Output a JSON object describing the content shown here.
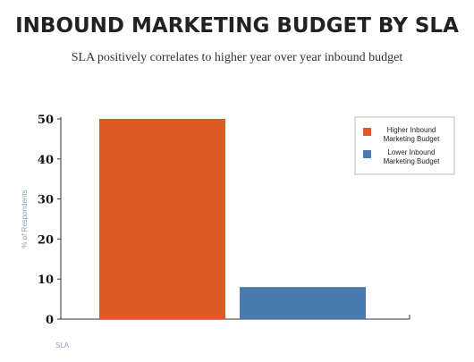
{
  "title": "INBOUND MARKETING BUDGET BY SLA",
  "subtitle": "SLA positively correlates to higher year over year inbound budget",
  "chart_data": {
    "type": "bar",
    "title": "INBOUND MARKETING BUDGET BY SLA",
    "subtitle": "SLA positively correlates to higher year over year inbound budget",
    "xlabel": "SLA",
    "ylabel": "% of Respondents",
    "ylim": [
      0,
      50
    ],
    "yticks": [
      0,
      10,
      20,
      30,
      40,
      50
    ],
    "grid": false,
    "legend_position": "top-right",
    "series": [
      {
        "name": "Higher Inbound Marketing Budget",
        "values": [
          50
        ],
        "color": "#dd5a25"
      },
      {
        "name": "Lower Inbound Marketing Budget",
        "values": [
          8
        ],
        "color": "#4a7bb0"
      }
    ],
    "legend": [
      {
        "lines": [
          "Higher Inbound",
          "Marketing Budget"
        ],
        "color": "#dd5a25"
      },
      {
        "lines": [
          "Lower Inbound",
          "Marketing Budget"
        ],
        "color": "#4a7bb0"
      }
    ]
  }
}
